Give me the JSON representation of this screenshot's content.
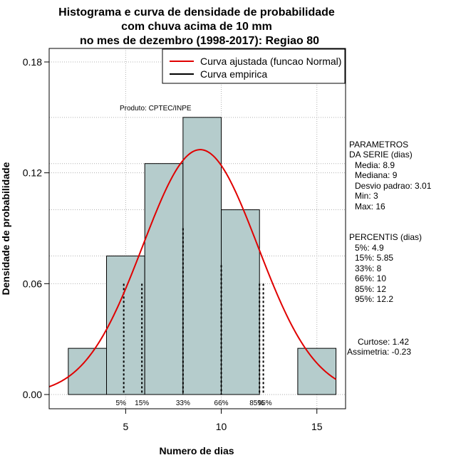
{
  "title_lines": [
    "Histograma e curva de densidade de probabilidade",
    "com chuva acima de 10 mm",
    "no mes de dezembro (1998-2017): Regiao 80"
  ],
  "product_label": "Produto: CPTEC/INPE",
  "legend": {
    "fitted": "Curva ajustada (funcao Normal)",
    "empirical": "Curva empirica"
  },
  "parameters": {
    "title_lines": [
      "PARAMETROS",
      "DA SERIE (dias)"
    ],
    "items": [
      "Media: 8.9",
      "Mediana: 9",
      "Desvio padrao: 3.01",
      "Min: 3",
      "Max: 16"
    ]
  },
  "percentiles": {
    "title": "PERCENTIS (dias)",
    "items": [
      "5%: 4.9",
      "15%: 5.85",
      "33%: 8",
      "66%: 10",
      "85%: 12",
      "95%: 12.2"
    ]
  },
  "shape": {
    "kurtosis": "Curtose: 1.42",
    "skewness": "Assimetria: -0.23"
  },
  "colors": {
    "bar_fill": "#b5cccc",
    "fitted_curve": "#e00000",
    "grid": "#b0b0b0"
  },
  "chart_data": {
    "type": "bar",
    "xlabel": "Numero de dias",
    "ylabel": "Densidade de probabilidade",
    "xlim": [
      1,
      16.5
    ],
    "ylim": [
      0,
      0.19
    ],
    "x_ticks": [
      5,
      10,
      15
    ],
    "y_ticks": [
      0.0,
      0.06,
      0.12,
      0.18
    ],
    "y_tick_labels": [
      "0.00",
      "0.06",
      "0.12",
      "0.18"
    ],
    "grid": true,
    "legend_position": "top-right",
    "histogram": [
      {
        "x0": 2,
        "x1": 4,
        "density": 0.025
      },
      {
        "x0": 4,
        "x1": 6,
        "density": 0.075
      },
      {
        "x0": 6,
        "x1": 8,
        "density": 0.125
      },
      {
        "x0": 8,
        "x1": 10,
        "density": 0.15
      },
      {
        "x0": 10,
        "x1": 12,
        "density": 0.1
      },
      {
        "x0": 12,
        "x1": 14,
        "density": 0
      },
      {
        "x0": 14,
        "x1": 16,
        "density": 0.025
      }
    ],
    "normal_fit": {
      "mean": 8.9,
      "sd": 3.01
    },
    "percentile_lines": [
      {
        "label": "5%",
        "x": 4.9
      },
      {
        "label": "15%",
        "x": 5.85
      },
      {
        "label": "33%",
        "x": 8
      },
      {
        "label": "66%",
        "x": 10
      },
      {
        "label": "85%",
        "x": 12
      },
      {
        "label": "95%",
        "x": 12.2
      }
    ]
  }
}
